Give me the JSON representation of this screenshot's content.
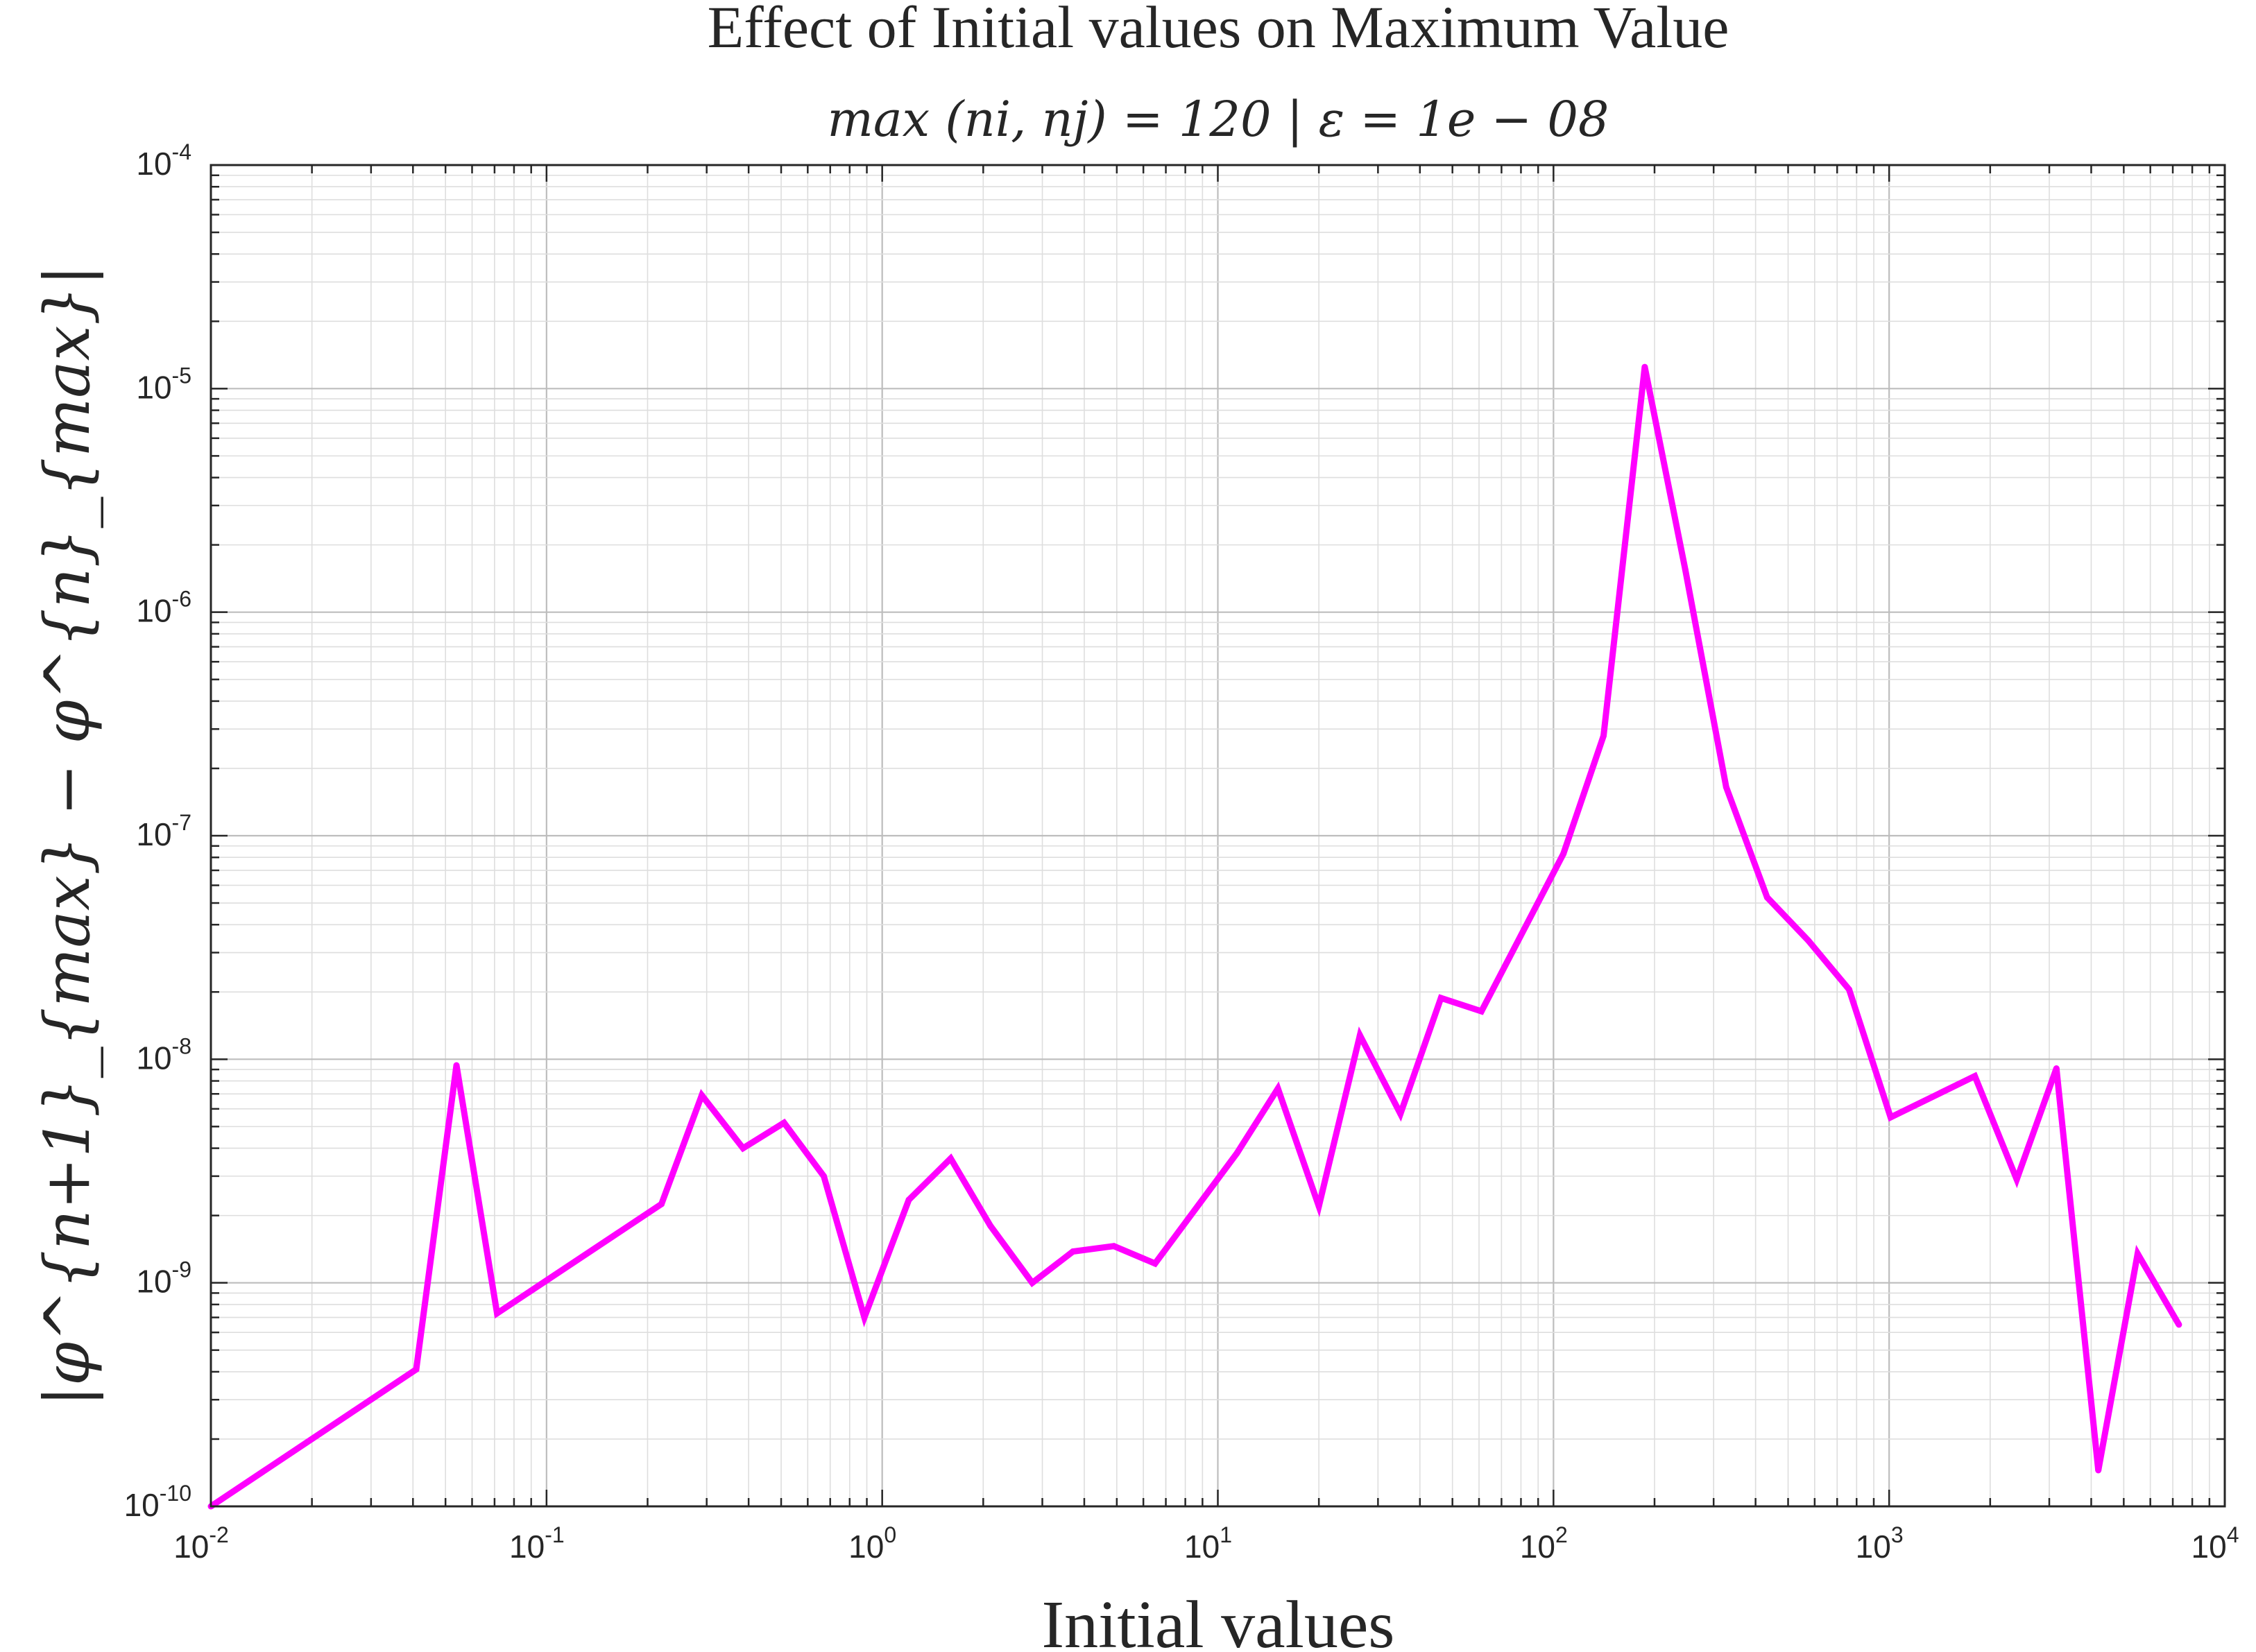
{
  "chart_data": {
    "type": "line",
    "title": "Effect of Initial values on Maximum Value",
    "subtitle": "max (ni, nj) = 120 | ε = 1e − 08",
    "xlabel": "Initial values",
    "ylabel": "|φ^{n+1}_{max} − φ^{n}_{max}|",
    "x_scale": "log",
    "y_scale": "log",
    "xlim": [
      0.01,
      10000
    ],
    "ylim": [
      1e-10,
      0.0001
    ],
    "grid": true,
    "minor_grid": true,
    "x_ticks": [
      {
        "value": 0.01,
        "base": "10",
        "exp": "-2"
      },
      {
        "value": 0.1,
        "base": "10",
        "exp": "-1"
      },
      {
        "value": 1,
        "base": "10",
        "exp": "0"
      },
      {
        "value": 10,
        "base": "10",
        "exp": "1"
      },
      {
        "value": 100,
        "base": "10",
        "exp": "2"
      },
      {
        "value": 1000,
        "base": "10",
        "exp": "3"
      },
      {
        "value": 10000,
        "base": "10",
        "exp": "4"
      }
    ],
    "y_ticks": [
      {
        "value": 1e-10,
        "base": "10",
        "exp": "-10"
      },
      {
        "value": 1e-09,
        "base": "10",
        "exp": "-9"
      },
      {
        "value": 1e-08,
        "base": "10",
        "exp": "-8"
      },
      {
        "value": 1e-07,
        "base": "10",
        "exp": "-7"
      },
      {
        "value": 1e-06,
        "base": "10",
        "exp": "-6"
      },
      {
        "value": 1e-05,
        "base": "10",
        "exp": "-5"
      },
      {
        "value": 0.0001,
        "base": "10",
        "exp": "-4"
      }
    ],
    "series": [
      {
        "color": "#ff00ff",
        "x": [
          0.01,
          0.0409,
          0.0539,
          0.0712,
          0.22,
          0.29,
          0.385,
          0.51,
          0.67,
          0.885,
          1.2,
          1.6,
          2.1,
          2.8,
          3.7,
          4.9,
          6.5,
          11.4,
          15.1,
          20,
          26.5,
          35,
          46.2,
          61,
          107,
          141,
          187,
          247,
          327,
          433,
          574,
          760,
          1010,
          1800,
          2400,
          3150,
          4200,
          5500,
          7300
        ],
        "y": [
          1e-10,
          4.1e-10,
          9.4e-09,
          7.3e-10,
          2.25e-09,
          6.9e-09,
          4e-09,
          5.2e-09,
          3e-09,
          7e-10,
          2.35e-09,
          3.6e-09,
          1.8e-09,
          1e-09,
          1.38e-09,
          1.46e-09,
          1.22e-09,
          3.8e-09,
          7.4e-09,
          2.2e-09,
          1.28e-08,
          5.7e-09,
          1.88e-08,
          1.64e-08,
          8.3e-08,
          2.8e-07,
          1.25e-05,
          1.55e-06,
          1.65e-07,
          5.3e-08,
          3.4e-08,
          2.05e-08,
          5.5e-09,
          8.4e-09,
          2.9e-09,
          9.1e-09,
          1.45e-10,
          1.35e-09,
          6.5e-10
        ]
      }
    ]
  }
}
